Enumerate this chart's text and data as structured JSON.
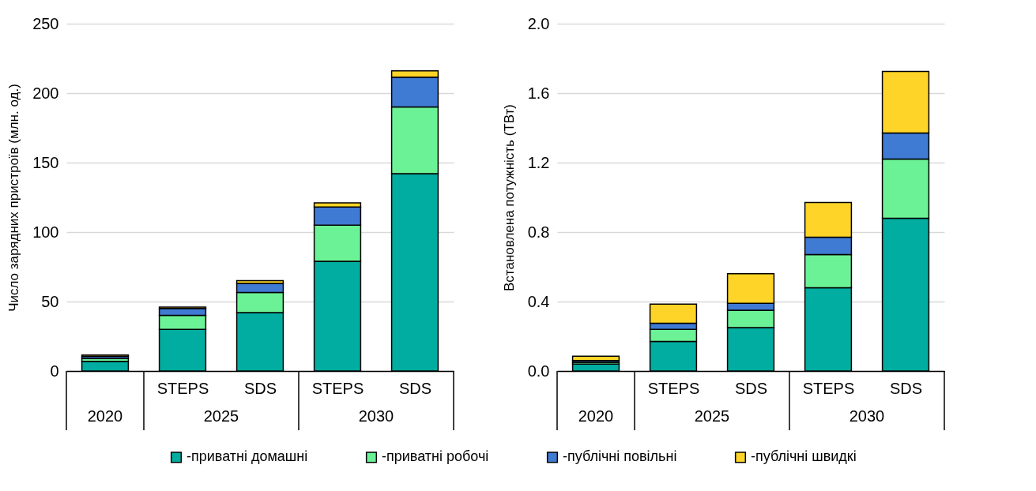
{
  "chart_data": [
    {
      "type": "bar",
      "stacked": true,
      "ylabel": "Число зарядних пристроїв (млн. од.)",
      "categories": [
        null,
        "STEPS",
        "SDS",
        "STEPS",
        "SDS"
      ],
      "annotations": [
        "2020",
        "2025",
        "2030"
      ],
      "ylim": [
        0,
        250
      ],
      "yticks": [
        0,
        50,
        100,
        150,
        200,
        250
      ],
      "grid": "y",
      "legend": "bottom",
      "series": [
        {
          "name": "-приватні домашні",
          "color": "#00ada0",
          "values": [
            7,
            30,
            42,
            79,
            142
          ]
        },
        {
          "name": "-приватні робочі",
          "color": "#6cf296",
          "values": [
            2,
            10,
            14.5,
            26,
            48
          ]
        },
        {
          "name": "-публічні повільні",
          "color": "#3f7ad3",
          "values": [
            1.5,
            5,
            6.5,
            13,
            21.5
          ]
        },
        {
          "name": "-публічні швидкі",
          "color": "#fdd427",
          "values": [
            1,
            1,
            2,
            3,
            4.5
          ]
        }
      ]
    },
    {
      "type": "bar",
      "stacked": true,
      "ylabel": "Встановлена потужність (ТВт)",
      "categories": [
        null,
        "STEPS",
        "SDS",
        "STEPS",
        "SDS"
      ],
      "annotations": [
        "2020",
        "2025",
        "2030"
      ],
      "ylim": [
        0,
        2.0
      ],
      "yticks": [
        {
          "value": 0,
          "label": "0.0"
        },
        {
          "value": 0.4,
          "label": "0.4"
        },
        {
          "value": 0.8,
          "label": "0.8"
        },
        {
          "value": 1.2,
          "label": "1.2"
        },
        {
          "value": 1.6,
          "label": "1.6"
        },
        {
          "value": 2.0,
          "label": "2.0"
        }
      ],
      "grid": "y",
      "legend": "bottom",
      "series": [
        {
          "name": "-приватні домашні",
          "color": "#00ada0",
          "values": [
            0.04,
            0.17,
            0.25,
            0.48,
            0.88
          ]
        },
        {
          "name": "-приватні робочі",
          "color": "#6cf296",
          "values": [
            0.01,
            0.07,
            0.1,
            0.19,
            0.34
          ]
        },
        {
          "name": "-публічні повільні",
          "color": "#3f7ad3",
          "values": [
            0.01,
            0.035,
            0.04,
            0.1,
            0.15
          ]
        },
        {
          "name": "-публічні швидкі",
          "color": "#fdd427",
          "values": [
            0.025,
            0.11,
            0.17,
            0.2,
            0.355
          ]
        }
      ]
    }
  ]
}
